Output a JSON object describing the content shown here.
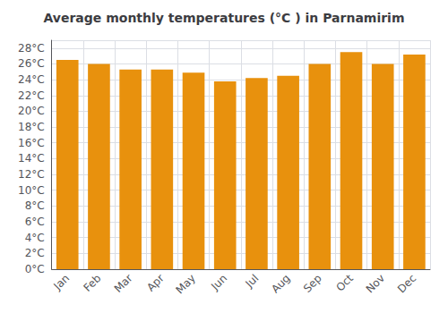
{
  "chart_data": {
    "type": "bar",
    "title": "Average monthly temperatures (°C ) in Parnamirim",
    "categories": [
      "Jan",
      "Feb",
      "Mar",
      "Apr",
      "May",
      "Jun",
      "Jul",
      "Aug",
      "Sep",
      "Oct",
      "Nov",
      "Dec"
    ],
    "values": [
      26.5,
      26.0,
      25.3,
      25.3,
      24.9,
      23.8,
      24.2,
      24.5,
      26.0,
      27.5,
      26.0,
      27.2
    ],
    "color": "#E8910D",
    "ylim": [
      0,
      29
    ],
    "yticks": [
      {
        "value": 0,
        "label": "0°C"
      },
      {
        "value": 2,
        "label": "2°C"
      },
      {
        "value": 4,
        "label": "4°C"
      },
      {
        "value": 6,
        "label": "6°C"
      },
      {
        "value": 8,
        "label": "8°C"
      },
      {
        "value": 10,
        "label": "10°C"
      },
      {
        "value": 12,
        "label": "12°C"
      },
      {
        "value": 14,
        "label": "14°C"
      },
      {
        "value": 16,
        "label": "16°C"
      },
      {
        "value": 18,
        "label": "18°C"
      },
      {
        "value": 20,
        "label": "20°C"
      },
      {
        "value": 22,
        "label": "22°C"
      },
      {
        "value": 24,
        "label": "24°C"
      },
      {
        "value": 26,
        "label": "26°C"
      },
      {
        "value": 28,
        "label": "28°C"
      }
    ],
    "grid": true
  }
}
